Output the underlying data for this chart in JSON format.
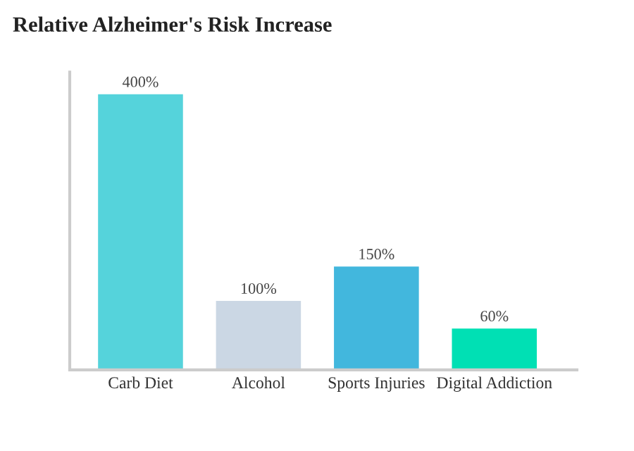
{
  "chart_data": {
    "type": "bar",
    "title": "Relative Alzheimer's Risk Increase",
    "categories": [
      "Carb Diet",
      "Alcohol",
      "Sports Injuries",
      "Digital Addiction"
    ],
    "values": [
      400,
      100,
      150,
      60
    ],
    "colors": [
      "#55d3db",
      "#cbd7e4",
      "#42b7dd",
      "#00e0b4"
    ],
    "value_labels": [
      "400%",
      "100%",
      "150%",
      "60%"
    ],
    "grid": false,
    "legend": false
  }
}
